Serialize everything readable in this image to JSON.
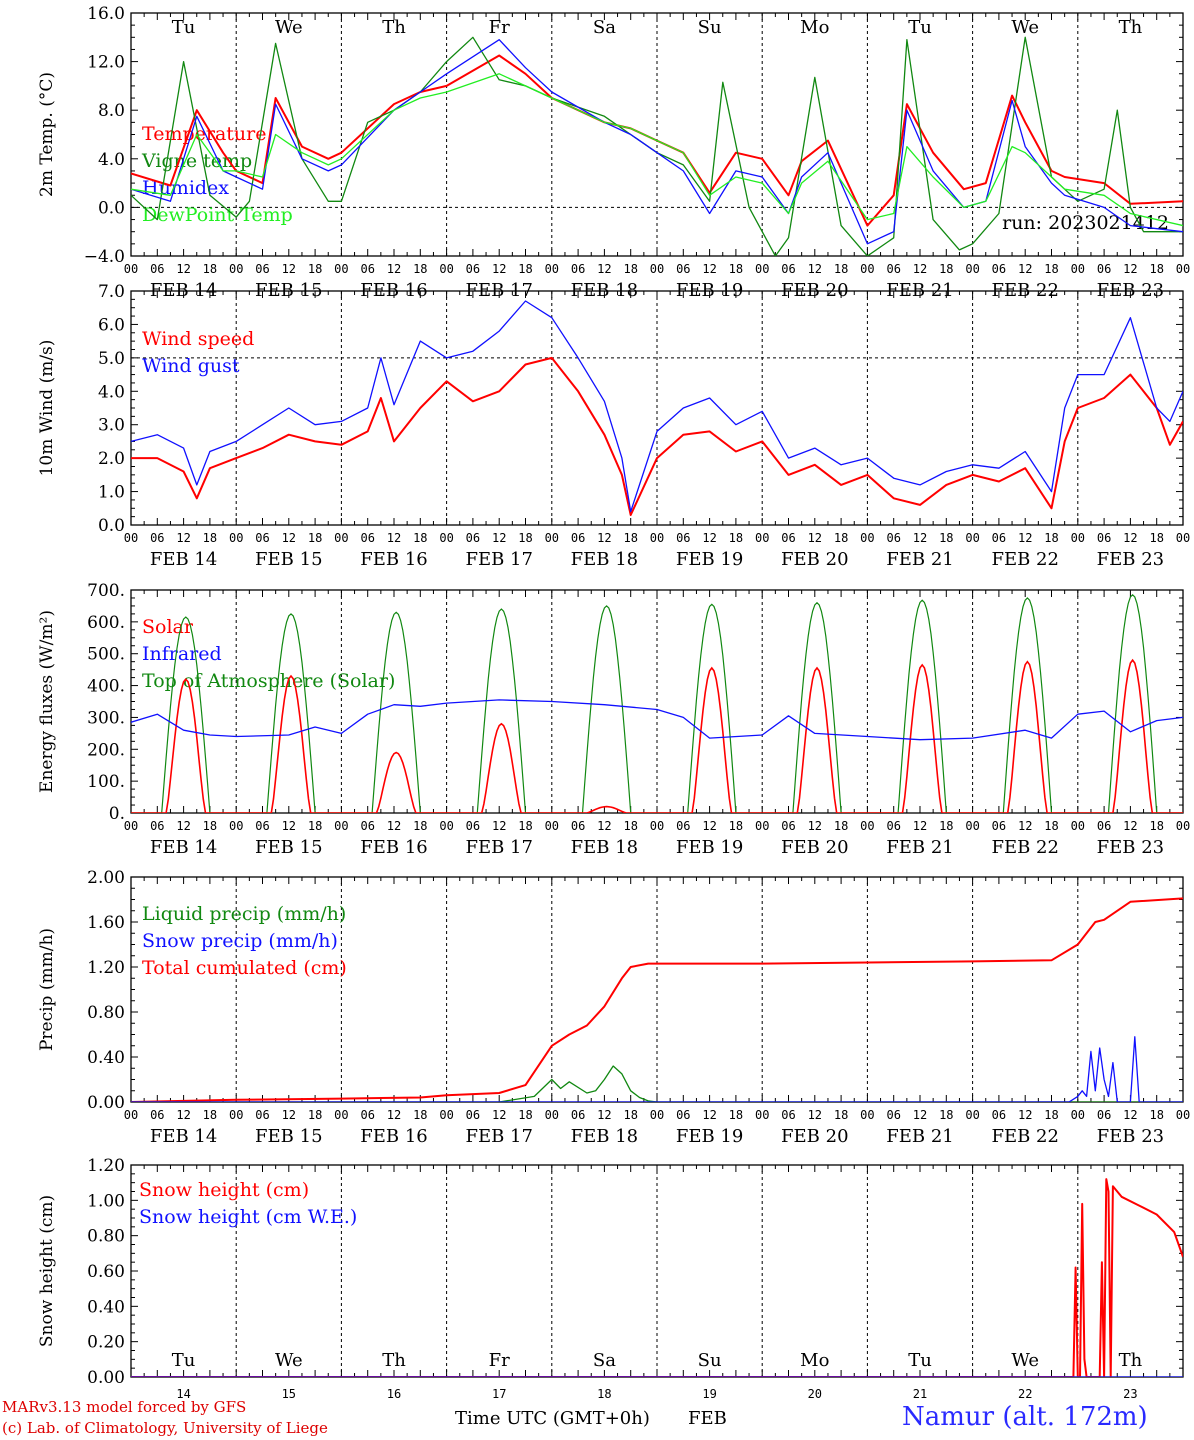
{
  "colors": {
    "red": "#ff0000",
    "green": "#118811",
    "blue": "#1010ff",
    "lightgreen": "#22ee22",
    "dark": "#000000"
  },
  "days": [
    "FEB 14",
    "FEB 15",
    "FEB 16",
    "FEB 17",
    "FEB 18",
    "FEB 19",
    "FEB 20",
    "FEB 21",
    "FEB 22",
    "FEB 23"
  ],
  "weekdays": [
    "Tu",
    "We",
    "Th",
    "Fr",
    "Sa",
    "Su",
    "Mo",
    "Tu",
    "We",
    "Th"
  ],
  "weekend": [
    false,
    false,
    false,
    false,
    true,
    true,
    false,
    false,
    false,
    false
  ],
  "hour_ticks": [
    "00",
    "06",
    "12",
    "18"
  ],
  "last_tick": "00",
  "day_numbers": [
    "14",
    "15",
    "16",
    "17",
    "18",
    "19",
    "20",
    "21",
    "22",
    "23"
  ],
  "footer": {
    "xlabel": "Time UTC (GMT+0h)",
    "month": "FEB",
    "credit1": "MARv3.13 model forced by GFS",
    "credit2": "(c) Lab. of Climatology, University of Liege",
    "station": "Namur (alt. 172m)"
  },
  "chart_data": [
    {
      "type": "line",
      "ylabel": "2m Temp. (°C)",
      "ylim": [
        -4,
        16
      ],
      "yticks": [
        "16.0",
        "12.0",
        "8.0",
        "4.0",
        "0.0",
        "−4.0"
      ],
      "ytick_values": [
        16,
        12,
        8,
        4,
        0,
        -4
      ],
      "dashed_y": 0,
      "run_label": "run: 2023021412",
      "legend": [
        "Temperature",
        "Vigne temp",
        "Humidex",
        "DewPoint Temp"
      ],
      "series": [
        {
          "name": "Temperature",
          "color": "red",
          "x": [
            0,
            9,
            15,
            21,
            24,
            30,
            33,
            39,
            45,
            48,
            60,
            66,
            72,
            84,
            90,
            96,
            108,
            114,
            120,
            126,
            132,
            138,
            144,
            150,
            153,
            159,
            168,
            174,
            177,
            183,
            190,
            195,
            201,
            204,
            210,
            213,
            222,
            228,
            240
          ],
          "y": [
            2.8,
            1.8,
            8.0,
            4.5,
            3.0,
            2.0,
            9.0,
            5.0,
            4.0,
            4.5,
            8.5,
            9.5,
            10.0,
            12.5,
            11.0,
            9.0,
            7.0,
            6.5,
            5.5,
            4.5,
            1.2,
            4.5,
            4.0,
            1.0,
            3.8,
            5.5,
            -1.5,
            1.0,
            8.5,
            4.5,
            1.5,
            2.0,
            9.2,
            7.0,
            3.0,
            2.5,
            2.0,
            0.3,
            0.5
          ]
        },
        {
          "name": "Vigne temp",
          "color": "green",
          "x": [
            0,
            6,
            12,
            18,
            24,
            27,
            33,
            39,
            45,
            48,
            54,
            60,
            66,
            72,
            78,
            84,
            90,
            96,
            108,
            114,
            120,
            126,
            132,
            135,
            141,
            147,
            150,
            156,
            162,
            168,
            174,
            177,
            183,
            189,
            192,
            198,
            204,
            210,
            216,
            222,
            225,
            228,
            231,
            240
          ],
          "y": [
            1.0,
            -1.0,
            12.0,
            1.0,
            -0.8,
            0.5,
            13.5,
            4.0,
            0.5,
            0.5,
            7.0,
            8.0,
            9.5,
            12.0,
            14.0,
            10.5,
            10.0,
            9.0,
            7.5,
            6.0,
            4.5,
            3.5,
            0.5,
            10.3,
            0.0,
            -4.0,
            -2.5,
            10.7,
            -1.5,
            -4.0,
            -2.5,
            13.8,
            -1.0,
            -3.5,
            -3.0,
            -0.5,
            14.0,
            2.5,
            0.5,
            1.5,
            8.0,
            0.0,
            -2.0,
            -2.0
          ]
        },
        {
          "name": "Humidex",
          "color": "blue",
          "x": [
            0,
            9,
            15,
            21,
            24,
            30,
            33,
            39,
            45,
            48,
            60,
            66,
            72,
            84,
            90,
            96,
            108,
            114,
            120,
            126,
            132,
            138,
            144,
            150,
            153,
            159,
            168,
            174,
            177,
            183,
            190,
            195,
            201,
            204,
            210,
            213,
            222,
            228,
            240
          ],
          "y": [
            1.5,
            0.5,
            7.5,
            3.0,
            2.5,
            1.5,
            8.5,
            4.0,
            3.0,
            3.5,
            8.0,
            9.5,
            11.0,
            13.8,
            11.5,
            9.5,
            7.0,
            6.0,
            4.5,
            3.0,
            -0.5,
            3.0,
            2.5,
            -0.5,
            2.5,
            4.5,
            -3.0,
            -2.0,
            8.0,
            3.0,
            0.0,
            0.5,
            8.8,
            5.0,
            2.0,
            1.0,
            0.0,
            -1.5,
            -2.0
          ]
        },
        {
          "name": "DewPoint Temp",
          "color": "lightgreen",
          "x": [
            0,
            9,
            15,
            21,
            24,
            30,
            33,
            39,
            45,
            48,
            60,
            66,
            72,
            84,
            90,
            96,
            108,
            114,
            120,
            126,
            132,
            138,
            144,
            150,
            153,
            159,
            168,
            174,
            177,
            183,
            190,
            195,
            201,
            204,
            210,
            213,
            222,
            228,
            240
          ],
          "y": [
            1.5,
            1.0,
            6.0,
            3.0,
            3.0,
            2.5,
            6.0,
            4.5,
            3.5,
            4.0,
            8.0,
            9.0,
            9.5,
            11.0,
            10.0,
            9.0,
            7.0,
            6.5,
            5.5,
            4.5,
            1.0,
            2.5,
            2.0,
            -0.5,
            2.0,
            3.8,
            -1.0,
            -0.5,
            5.0,
            2.5,
            0.0,
            0.5,
            5.0,
            4.5,
            2.5,
            1.5,
            1.0,
            -0.5,
            -1.5
          ]
        }
      ]
    },
    {
      "type": "line",
      "ylabel": "10m Wind (m/s)",
      "ylim": [
        0,
        7
      ],
      "yticks": [
        "7.0",
        "6.0",
        "5.0",
        "4.0",
        "3.0",
        "2.0",
        "1.0",
        "0.0"
      ],
      "ytick_values": [
        7,
        6,
        5,
        4,
        3,
        2,
        1,
        0
      ],
      "dashed_y": 5,
      "legend": [
        "Wind speed",
        "Wind gust"
      ],
      "series": [
        {
          "name": "Wind speed",
          "color": "red",
          "x": [
            0,
            6,
            12,
            15,
            18,
            24,
            30,
            36,
            42,
            48,
            54,
            57,
            60,
            66,
            72,
            78,
            84,
            90,
            96,
            102,
            108,
            112,
            114,
            120,
            126,
            132,
            138,
            144,
            150,
            156,
            162,
            168,
            174,
            180,
            186,
            192,
            198,
            204,
            210,
            213,
            216,
            222,
            228,
            234,
            237,
            240
          ],
          "y": [
            2.0,
            2.0,
            1.6,
            0.8,
            1.7,
            2.0,
            2.3,
            2.7,
            2.5,
            2.4,
            2.8,
            3.8,
            2.5,
            3.5,
            4.3,
            3.7,
            4.0,
            4.8,
            5.0,
            4.0,
            2.7,
            1.5,
            0.3,
            2.0,
            2.7,
            2.8,
            2.2,
            2.5,
            1.5,
            1.8,
            1.2,
            1.5,
            0.8,
            0.6,
            1.2,
            1.5,
            1.3,
            1.7,
            0.5,
            2.5,
            3.5,
            3.8,
            4.5,
            3.5,
            2.4,
            3.1
          ]
        },
        {
          "name": "Wind gust",
          "color": "blue",
          "x": [
            0,
            6,
            12,
            15,
            18,
            24,
            30,
            36,
            42,
            48,
            54,
            57,
            60,
            66,
            72,
            78,
            84,
            90,
            96,
            102,
            108,
            112,
            114,
            120,
            126,
            132,
            138,
            144,
            150,
            156,
            162,
            168,
            174,
            180,
            186,
            192,
            198,
            204,
            210,
            213,
            216,
            222,
            228,
            234,
            237,
            240
          ],
          "y": [
            2.5,
            2.7,
            2.3,
            1.2,
            2.2,
            2.5,
            3.0,
            3.5,
            3.0,
            3.1,
            3.5,
            5.0,
            3.6,
            5.5,
            5.0,
            5.2,
            5.8,
            6.7,
            6.2,
            5.0,
            3.7,
            2.0,
            0.4,
            2.8,
            3.5,
            3.8,
            3.0,
            3.4,
            2.0,
            2.3,
            1.8,
            2.0,
            1.4,
            1.2,
            1.6,
            1.8,
            1.7,
            2.2,
            1.0,
            3.5,
            4.5,
            4.5,
            6.2,
            3.5,
            3.1,
            4.0
          ]
        }
      ]
    },
    {
      "type": "line",
      "ylabel": "Energy fluxes (W/m²)",
      "ylim": [
        0,
        700
      ],
      "yticks": [
        "700.",
        "600.",
        "500.",
        "400.",
        "300.",
        "200.",
        "100.",
        "0."
      ],
      "ytick_values": [
        700,
        600,
        500,
        400,
        300,
        200,
        100,
        0
      ],
      "legend": [
        "Solar",
        "Infrared",
        "Top of Atmosphere (Solar)"
      ],
      "toa_peaks": [
        615,
        625,
        630,
        640,
        650,
        655,
        660,
        668,
        675,
        685
      ],
      "solar_peaks": [
        420,
        430,
        190,
        280,
        20,
        455,
        455,
        465,
        475,
        480
      ],
      "series": [
        {
          "name": "Infrared",
          "color": "blue",
          "x": [
            0,
            6,
            12,
            18,
            24,
            36,
            42,
            48,
            54,
            60,
            66,
            72,
            84,
            96,
            108,
            120,
            126,
            132,
            144,
            150,
            156,
            168,
            180,
            192,
            204,
            210,
            216,
            222,
            228,
            234,
            240
          ],
          "y": [
            285,
            310,
            260,
            245,
            240,
            245,
            270,
            250,
            310,
            340,
            335,
            345,
            355,
            350,
            340,
            325,
            300,
            235,
            245,
            305,
            250,
            240,
            230,
            235,
            260,
            235,
            310,
            320,
            255,
            290,
            300
          ]
        }
      ]
    },
    {
      "type": "line",
      "ylabel": "Precip (mm/h)",
      "ylim": [
        0,
        2
      ],
      "yticks": [
        "2.00",
        "1.60",
        "1.20",
        "0.80",
        "0.40",
        "0.00"
      ],
      "ytick_values": [
        2.0,
        1.6,
        1.2,
        0.8,
        0.4,
        0.0
      ],
      "legend": [
        "Liquid precip (mm/h)",
        "Snow precip (mm/h)",
        "Total cumulated (cm)"
      ],
      "series": [
        {
          "name": "Total cumulated (cm)",
          "color": "red",
          "x": [
            0,
            24,
            48,
            66,
            72,
            84,
            90,
            96,
            100,
            104,
            108,
            112,
            114,
            118,
            126,
            144,
            168,
            192,
            210,
            216,
            220,
            222,
            228,
            240
          ],
          "y": [
            0.0,
            0.02,
            0.03,
            0.04,
            0.06,
            0.08,
            0.15,
            0.5,
            0.6,
            0.68,
            0.85,
            1.1,
            1.2,
            1.23,
            1.23,
            1.23,
            1.24,
            1.25,
            1.26,
            1.4,
            1.6,
            1.62,
            1.78,
            1.81
          ]
        },
        {
          "name": "Liquid precip (mm/h)",
          "color": "green",
          "x": [
            0,
            84,
            92,
            96,
            98,
            100,
            104,
            106,
            108,
            110,
            112,
            114,
            116,
            118,
            120,
            240
          ],
          "y": [
            0,
            0,
            0.05,
            0.2,
            0.12,
            0.18,
            0.08,
            0.1,
            0.2,
            0.32,
            0.25,
            0.1,
            0.04,
            0.01,
            0,
            0
          ]
        },
        {
          "name": "Snow precip (mm/h)",
          "color": "blue",
          "x": [
            0,
            214,
            216,
            217,
            218,
            219,
            220,
            221,
            222,
            223,
            224,
            225,
            226,
            228,
            229,
            230,
            231,
            232,
            240
          ],
          "y": [
            0,
            0,
            0.05,
            0.1,
            0.05,
            0.45,
            0.1,
            0.48,
            0.2,
            0.05,
            0.35,
            0.0,
            0.0,
            0.0,
            0.58,
            0.0,
            0.0,
            0.0,
            0.0
          ]
        }
      ]
    },
    {
      "type": "line",
      "ylabel": "Snow height (cm)",
      "ylim": [
        0,
        1.2
      ],
      "yticks": [
        "1.20",
        "1.00",
        "0.80",
        "0.60",
        "0.40",
        "0.20",
        "0.00"
      ],
      "ytick_values": [
        1.2,
        1.0,
        0.8,
        0.6,
        0.4,
        0.2,
        0.0
      ],
      "legend": [
        "Snow height (cm)",
        "Snow height (cm W.E.)"
      ],
      "series": [
        {
          "name": "Snow height (cm)",
          "color": "red",
          "x": [
            0,
            214,
            215,
            215.5,
            216,
            216.5,
            217,
            217.5,
            218,
            221,
            221.5,
            222,
            222.5,
            223,
            223.5,
            224,
            226,
            230,
            234,
            238,
            240
          ],
          "y": [
            0,
            0,
            0,
            0.62,
            0,
            0,
            0.98,
            0.1,
            0,
            0,
            0.65,
            0,
            1.12,
            1.05,
            0.0,
            1.08,
            1.02,
            0.97,
            0.92,
            0.82,
            0.68
          ]
        },
        {
          "name": "Snow height (cm W.E.)",
          "color": "blue",
          "x": [
            0,
            240
          ],
          "y": [
            0,
            0
          ]
        }
      ]
    }
  ]
}
